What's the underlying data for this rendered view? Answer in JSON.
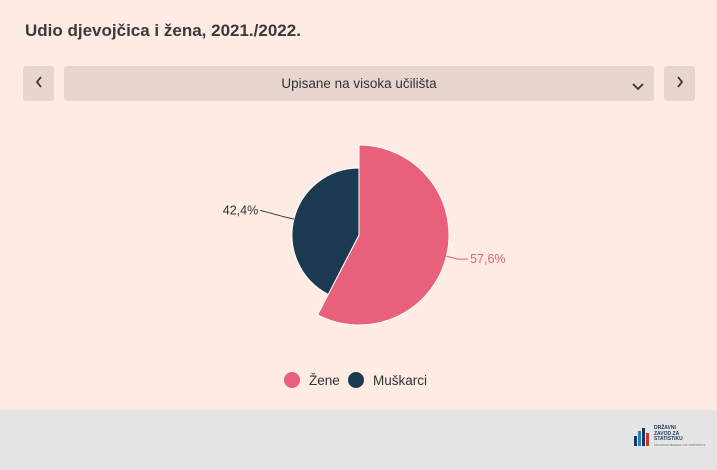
{
  "header": {
    "title": "Udio djevojčica i žena, 2021./2022."
  },
  "selector": {
    "selected": "Upisane na visoka učilišta"
  },
  "icons": {
    "prev": "chevron-left-icon",
    "next": "chevron-right-icon",
    "dropdown": "chevron-down-icon"
  },
  "colors": {
    "background": "#fdebe4",
    "footer": "#e5e5e5",
    "zene": "#e8607a",
    "muskarci": "#1b3a52"
  },
  "chart_data": {
    "type": "pie",
    "title": "Udio djevojčica i žena, 2021./2022.",
    "slices": [
      {
        "name": "Žene",
        "value": 57.6,
        "label": "57,6%",
        "color": "#e8607a"
      },
      {
        "name": "Muškarci",
        "value": 42.4,
        "label": "42,4%",
        "color": "#1b3a52"
      }
    ],
    "legend": {
      "placement": "bottom"
    }
  },
  "footer": {
    "logo": {
      "lines": [
        "DRŽAVNI",
        "ZAVOD ZA",
        "STATISTIKU"
      ],
      "subtitle": "CROATIAN BUREAU OF STATISTICS"
    }
  }
}
